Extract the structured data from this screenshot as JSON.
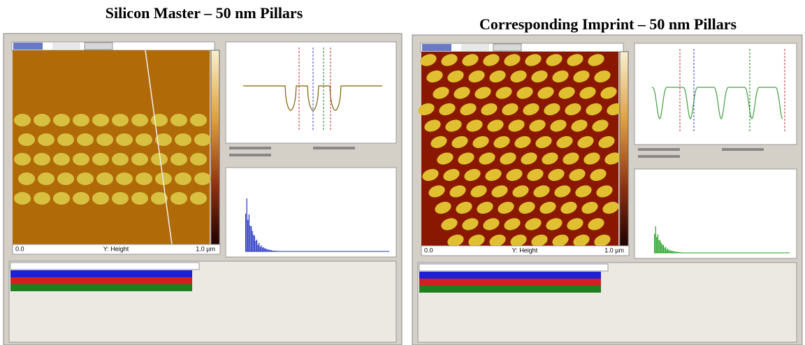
{
  "panels": [
    {
      "title": "Silicon Master – 50 nm Pillars",
      "scale_start": "0.0",
      "channel": "Y: Height",
      "scale_end": "1.0 µm"
    },
    {
      "title": "Corresponding Imprint – 50 nm Pillars",
      "scale_start": "0.0",
      "channel": "Y: Height",
      "scale_end": "1.0 µm"
    }
  ]
}
